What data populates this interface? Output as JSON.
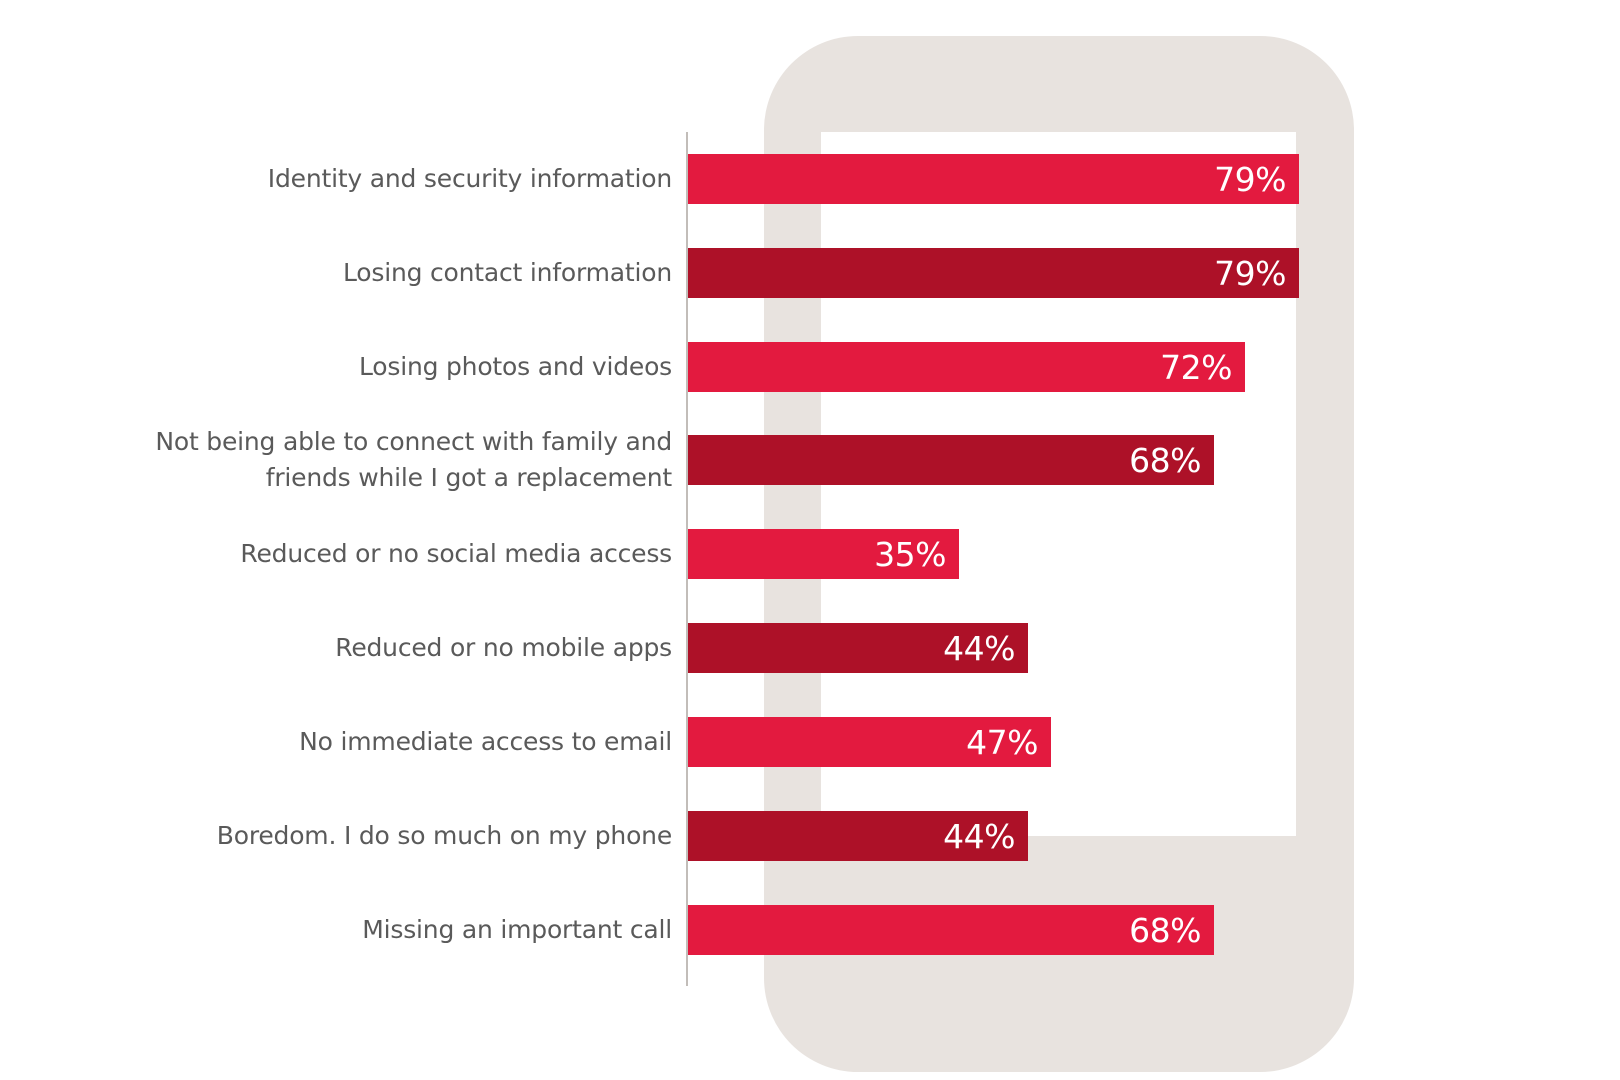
{
  "colors": {
    "bright": "#e31a3f",
    "dark": "#ad1128",
    "phone": "#e8e3df"
  },
  "chart_data": {
    "type": "bar",
    "orientation": "horizontal",
    "title": "",
    "xlabel": "",
    "ylabel": "",
    "xlim": [
      0,
      100
    ],
    "grid": false,
    "legend": "none",
    "categories": [
      "Identity and security information",
      "Losing contact information",
      "Losing photos and videos",
      "Not being able to connect with family and\nfriends while I got a replacement",
      "Reduced or no social media access",
      "Reduced or no mobile apps",
      "No immediate access to email",
      "Boredom. I do so much on my phone",
      "Missing an important call"
    ],
    "values": [
      79,
      79,
      72,
      68,
      35,
      44,
      47,
      44,
      68
    ],
    "value_labels": [
      "79%",
      "79%",
      "72%",
      "68%",
      "35%",
      "44%",
      "47%",
      "44%",
      "68%"
    ],
    "bar_colors": [
      "bright",
      "dark",
      "bright",
      "dark",
      "bright",
      "dark",
      "bright",
      "dark",
      "bright"
    ]
  }
}
